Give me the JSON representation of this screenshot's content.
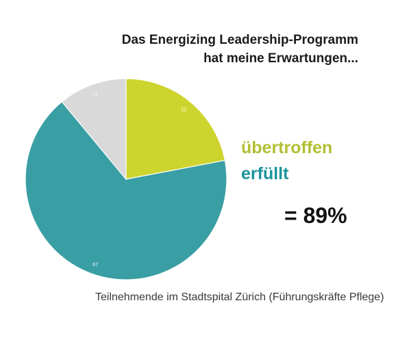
{
  "page": {
    "background_color": "#ffffff"
  },
  "header": {
    "title_line1": "Das Energizing Leadership-Programm",
    "title_line2": "hat meine Erwartungen..."
  },
  "chart_data": {
    "type": "pie",
    "title": "Das Energizing Leadership-Programm hat meine Erwartungen...",
    "start_angle_deg": 0,
    "direction": "clockwise",
    "data_label_color": "#ffffff",
    "legend_position": "right",
    "slices": [
      {
        "label": "übertroffen",
        "value": 22,
        "color": "#cdd42e",
        "data_label": "22"
      },
      {
        "label": "erfüllt",
        "value": 67,
        "color": "#3a9fa4",
        "data_label": "67"
      },
      {
        "label": "",
        "value": 11,
        "color": "#d9d9d9",
        "data_label": "11"
      }
    ]
  },
  "annotation": {
    "line1": {
      "text": "übertroffen",
      "color": "#b2bf33"
    },
    "line2": {
      "text": "erfüllt",
      "color": "#1b949b"
    },
    "result": "= 89%"
  },
  "footer": {
    "caption": "Teilnehmende im Stadtspital Zürich (Führungskräfte Pflege)"
  }
}
